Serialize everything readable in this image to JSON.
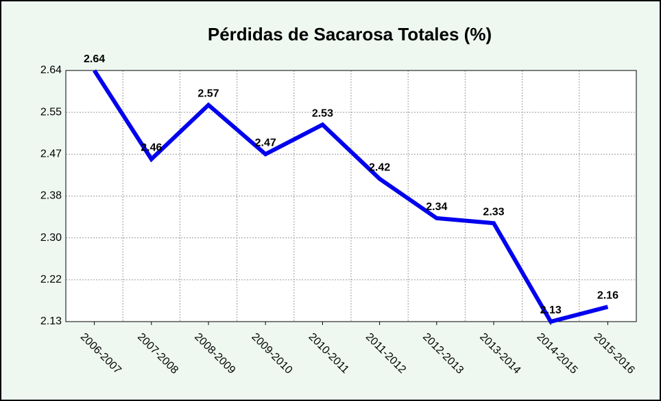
{
  "chart_data": {
    "type": "line",
    "title": "Pérdidas de Sacarosa Totales  (%)",
    "categories": [
      "2006-2007",
      "2007-2008",
      "2008-2009",
      "2009-2010",
      "2010-2011",
      "2011-2012",
      "2012-2013",
      "2013-2014",
      "2014-2015",
      "2015-2016"
    ],
    "series": [
      {
        "name": "Pérdidas de Sacarosa Totales",
        "color": "#0000ee",
        "values": [
          2.64,
          2.46,
          2.57,
          2.47,
          2.53,
          2.42,
          2.34,
          2.33,
          2.13,
          2.16
        ]
      }
    ],
    "ylim": [
      2.13,
      2.64
    ],
    "yticks": [
      2.13,
      {
        "value": 2.215,
        "label": "2.22"
      },
      {
        "value": 2.3,
        "label": "2.30"
      },
      {
        "value": 2.385,
        "label": "2.38"
      },
      2.47,
      {
        "value": 2.555,
        "label": "2.55"
      },
      2.64
    ],
    "grid": true
  }
}
